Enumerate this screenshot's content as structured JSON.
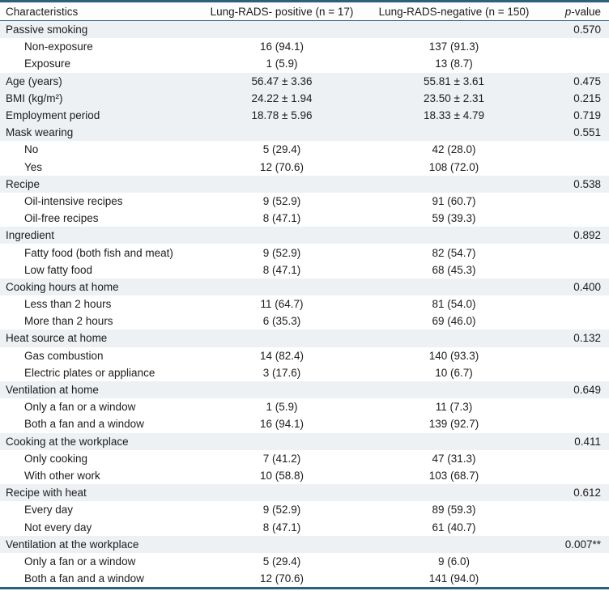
{
  "colors": {
    "table_border": "#2f5f7e",
    "row_shade": "#edf1f4"
  },
  "table": {
    "header": {
      "characteristics": "Characteristics",
      "positive": "Lung-RADS- positive (n = 17)",
      "negative": "Lung-RADS-negative (n = 150)",
      "p_italic": "p",
      "p_rest": "-value"
    },
    "rows": [
      {
        "label": "Passive smoking",
        "indent": false,
        "shaded": true,
        "positive": "",
        "negative": "",
        "p": "0.570"
      },
      {
        "label": "Non-exposure",
        "indent": true,
        "shaded": false,
        "positive": "16 (94.1)",
        "negative": "137 (91.3)",
        "p": ""
      },
      {
        "label": "Exposure",
        "indent": true,
        "shaded": false,
        "positive": "1 (5.9)",
        "negative": "13 (8.7)",
        "p": ""
      },
      {
        "label": "Age (years)",
        "indent": false,
        "shaded": true,
        "positive": "56.47 ± 3.36",
        "negative": "55.81 ± 3.61",
        "p": "0.475"
      },
      {
        "label": "BMI (kg/m²)",
        "indent": false,
        "shaded": true,
        "positive": "24.22 ± 1.94",
        "negative": "23.50 ± 2.31",
        "p": "0.215"
      },
      {
        "label": "Employment period",
        "indent": false,
        "shaded": true,
        "positive": "18.78 ± 5.96",
        "negative": "18.33 ± 4.79",
        "p": "0.719"
      },
      {
        "label": "Mask wearing",
        "indent": false,
        "shaded": true,
        "positive": "",
        "negative": "",
        "p": "0.551"
      },
      {
        "label": "No",
        "indent": true,
        "shaded": false,
        "positive": "5 (29.4)",
        "negative": "42 (28.0)",
        "p": ""
      },
      {
        "label": "Yes",
        "indent": true,
        "shaded": false,
        "positive": "12 (70.6)",
        "negative": "108 (72.0)",
        "p": ""
      },
      {
        "label": "Recipe",
        "indent": false,
        "shaded": true,
        "positive": "",
        "negative": "",
        "p": "0.538"
      },
      {
        "label": "Oil-intensive recipes",
        "indent": true,
        "shaded": false,
        "positive": "9 (52.9)",
        "negative": "91 (60.7)",
        "p": ""
      },
      {
        "label": "Oil-free recipes",
        "indent": true,
        "shaded": false,
        "positive": "8 (47.1)",
        "negative": "59 (39.3)",
        "p": ""
      },
      {
        "label": "Ingredient",
        "indent": false,
        "shaded": true,
        "positive": "",
        "negative": "",
        "p": "0.892"
      },
      {
        "label": "Fatty food (both fish and meat)",
        "indent": true,
        "shaded": false,
        "positive": "9 (52.9)",
        "negative": "82 (54.7)",
        "p": ""
      },
      {
        "label": "Low fatty food",
        "indent": true,
        "shaded": false,
        "positive": "8 (47.1)",
        "negative": "68 (45.3)",
        "p": ""
      },
      {
        "label": "Cooking hours at home",
        "indent": false,
        "shaded": true,
        "positive": "",
        "negative": "",
        "p": "0.400"
      },
      {
        "label": "Less than 2 hours",
        "indent": true,
        "shaded": false,
        "positive": "11 (64.7)",
        "negative": "81 (54.0)",
        "p": ""
      },
      {
        "label": "More than 2 hours",
        "indent": true,
        "shaded": false,
        "positive": "6 (35.3)",
        "negative": "69 (46.0)",
        "p": ""
      },
      {
        "label": "Heat source at home",
        "indent": false,
        "shaded": true,
        "positive": "",
        "negative": "",
        "p": "0.132"
      },
      {
        "label": "Gas combustion",
        "indent": true,
        "shaded": false,
        "positive": "14 (82.4)",
        "negative": "140 (93.3)",
        "p": ""
      },
      {
        "label": "Electric plates or appliance",
        "indent": true,
        "shaded": false,
        "positive": "3 (17.6)",
        "negative": "10 (6.7)",
        "p": ""
      },
      {
        "label": "Ventilation at home",
        "indent": false,
        "shaded": true,
        "positive": "",
        "negative": "",
        "p": "0.649"
      },
      {
        "label": "Only a fan or a window",
        "indent": true,
        "shaded": false,
        "positive": "1 (5.9)",
        "negative": "11 (7.3)",
        "p": ""
      },
      {
        "label": "Both a fan and a window",
        "indent": true,
        "shaded": false,
        "positive": "16 (94.1)",
        "negative": "139 (92.7)",
        "p": ""
      },
      {
        "label": "Cooking at the workplace",
        "indent": false,
        "shaded": true,
        "positive": "",
        "negative": "",
        "p": "0.411"
      },
      {
        "label": "Only cooking",
        "indent": true,
        "shaded": false,
        "positive": "7 (41.2)",
        "negative": "47 (31.3)",
        "p": ""
      },
      {
        "label": "With other work",
        "indent": true,
        "shaded": false,
        "positive": "10 (58.8)",
        "negative": "103 (68.7)",
        "p": ""
      },
      {
        "label": "Recipe with heat",
        "indent": false,
        "shaded": true,
        "positive": "",
        "negative": "",
        "p": "0.612"
      },
      {
        "label": "Every day",
        "indent": true,
        "shaded": false,
        "positive": "9 (52.9)",
        "negative": "89 (59.3)",
        "p": ""
      },
      {
        "label": "Not every day",
        "indent": true,
        "shaded": false,
        "positive": "8 (47.1)",
        "negative": "61 (40.7)",
        "p": ""
      },
      {
        "label": "Ventilation at the workplace",
        "indent": false,
        "shaded": true,
        "positive": "",
        "negative": "",
        "p": "0.007**"
      },
      {
        "label": "Only a fan or a window",
        "indent": true,
        "shaded": false,
        "positive": "5 (29.4)",
        "negative": "9 (6.0)",
        "p": ""
      },
      {
        "label": "Both a fan and a window",
        "indent": true,
        "shaded": false,
        "positive": "12 (70.6)",
        "negative": "141 (94.0)",
        "p": ""
      }
    ]
  }
}
